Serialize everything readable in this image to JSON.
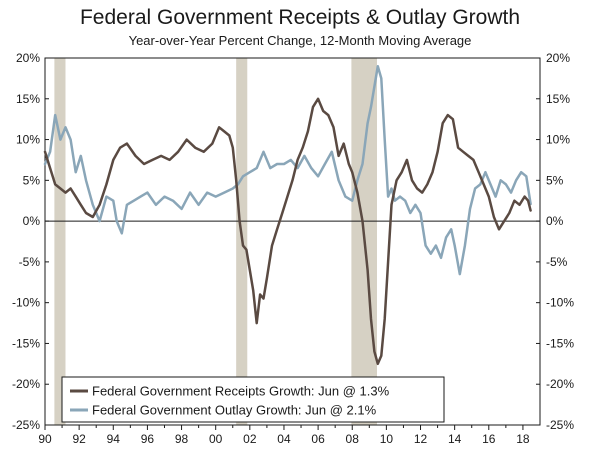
{
  "chart_data": {
    "type": "line",
    "title": "Federal Government Receipts & Outlay Growth",
    "subtitle": "Year-over-Year Percent Change, 12-Month Moving Average",
    "xlabel": "",
    "ylabel": "",
    "xlim": [
      1990.0,
      2019.0
    ],
    "ylim": [
      -25,
      20
    ],
    "y_ticks": [
      20,
      15,
      10,
      5,
      0,
      -5,
      -10,
      -15,
      -20,
      -25
    ],
    "y_tick_labels_left": [
      "20%",
      "15%",
      "10%",
      "5%",
      "0%",
      "-5%",
      "-10%",
      "-15%",
      "-20%",
      "-25%"
    ],
    "y_tick_labels_right": [
      "20%",
      "15%",
      "10%",
      "5%",
      "0%",
      "-5%",
      "-10%",
      "-15%",
      "-20%",
      "-25%"
    ],
    "x_ticks": [
      1990,
      1992,
      1994,
      1996,
      1998,
      2000,
      2002,
      2004,
      2006,
      2008,
      2010,
      2012,
      2014,
      2016,
      2018
    ],
    "x_tick_labels": [
      "90",
      "92",
      "94",
      "96",
      "98",
      "00",
      "02",
      "04",
      "06",
      "08",
      "10",
      "12",
      "14",
      "16",
      "18"
    ],
    "recessions": [
      {
        "start": 1990.55,
        "end": 1991.2
      },
      {
        "start": 2001.2,
        "end": 2001.85
      },
      {
        "start": 2007.95,
        "end": 2009.45
      }
    ],
    "series": [
      {
        "name": "Federal Government Receipts Growth: Jun @ 1.3%",
        "color": "#5a4a42",
        "x": [
          1990.0,
          1990.3,
          1990.6,
          1990.9,
          1991.2,
          1991.5,
          1991.8,
          1992.1,
          1992.4,
          1992.8,
          1993.2,
          1993.6,
          1994.0,
          1994.4,
          1994.8,
          1995.3,
          1995.8,
          1996.3,
          1996.8,
          1997.3,
          1997.8,
          1998.3,
          1998.8,
          1999.3,
          1999.8,
          2000.2,
          2000.5,
          2000.8,
          2001.0,
          2001.2,
          2001.4,
          2001.6,
          2001.8,
          2002.0,
          2002.2,
          2002.4,
          2002.6,
          2002.8,
          2003.0,
          2003.3,
          2003.6,
          2003.9,
          2004.2,
          2004.5,
          2004.8,
          2005.1,
          2005.4,
          2005.7,
          2006.0,
          2006.3,
          2006.6,
          2006.9,
          2007.2,
          2007.5,
          2007.8,
          2008.0,
          2008.3,
          2008.6,
          2008.9,
          2009.1,
          2009.3,
          2009.5,
          2009.7,
          2009.9,
          2010.1,
          2010.3,
          2010.6,
          2010.9,
          2011.2,
          2011.5,
          2011.8,
          2012.1,
          2012.4,
          2012.7,
          2013.0,
          2013.3,
          2013.6,
          2013.9,
          2014.2,
          2014.5,
          2014.8,
          2015.1,
          2015.4,
          2015.7,
          2016.0,
          2016.3,
          2016.6,
          2016.9,
          2017.2,
          2017.5,
          2017.8,
          2018.1,
          2018.3,
          2018.45
        ],
        "values": [
          8.5,
          6.5,
          4.5,
          4.0,
          3.5,
          4.0,
          3.0,
          2.0,
          1.0,
          0.5,
          2.0,
          4.5,
          7.5,
          9.0,
          9.5,
          8.0,
          7.0,
          7.5,
          8.0,
          7.5,
          8.5,
          10.0,
          9.0,
          8.5,
          9.5,
          11.5,
          11.0,
          10.5,
          9.0,
          5.0,
          0.0,
          -3.0,
          -3.5,
          -6.0,
          -8.5,
          -12.5,
          -9.0,
          -9.5,
          -7.0,
          -3.0,
          -1.0,
          1.0,
          3.0,
          5.0,
          7.5,
          9.0,
          11.0,
          14.0,
          15.0,
          13.5,
          13.0,
          11.5,
          8.0,
          9.5,
          7.0,
          6.0,
          3.5,
          0.0,
          -6.0,
          -12.0,
          -16.0,
          -17.5,
          -16.5,
          -12.0,
          -5.0,
          2.0,
          5.0,
          6.0,
          7.5,
          5.0,
          4.0,
          3.5,
          4.5,
          6.0,
          8.5,
          12.0,
          13.0,
          12.5,
          9.0,
          8.5,
          8.0,
          7.5,
          6.0,
          4.5,
          3.0,
          0.5,
          -1.0,
          0.0,
          1.0,
          2.5,
          2.0,
          3.0,
          2.5,
          1.3
        ]
      },
      {
        "name": "Federal Government Outlay Growth: Jun @ 2.1%",
        "color": "#8aa6b8",
        "x": [
          1990.0,
          1990.3,
          1990.6,
          1990.9,
          1991.2,
          1991.5,
          1991.8,
          1992.1,
          1992.4,
          1992.8,
          1993.2,
          1993.6,
          1994.0,
          1994.2,
          1994.5,
          1994.8,
          1995.2,
          1995.6,
          1996.0,
          1996.5,
          1997.0,
          1997.5,
          1998.0,
          1998.5,
          1999.0,
          1999.5,
          2000.0,
          2000.5,
          2001.0,
          2001.3,
          2001.6,
          2002.0,
          2002.4,
          2002.8,
          2003.2,
          2003.6,
          2004.0,
          2004.4,
          2004.8,
          2005.2,
          2005.6,
          2006.0,
          2006.4,
          2006.8,
          2007.2,
          2007.6,
          2008.0,
          2008.3,
          2008.6,
          2008.9,
          2009.1,
          2009.3,
          2009.5,
          2009.7,
          2009.9,
          2010.1,
          2010.3,
          2010.5,
          2010.8,
          2011.1,
          2011.4,
          2011.7,
          2012.0,
          2012.3,
          2012.6,
          2012.9,
          2013.2,
          2013.5,
          2013.8,
          2014.0,
          2014.3,
          2014.6,
          2014.9,
          2015.2,
          2015.5,
          2015.8,
          2016.1,
          2016.4,
          2016.7,
          2017.0,
          2017.3,
          2017.6,
          2017.9,
          2018.2,
          2018.45
        ],
        "values": [
          7.0,
          8.5,
          13.0,
          10.0,
          11.5,
          10.0,
          6.0,
          8.0,
          5.0,
          2.0,
          0.0,
          3.0,
          2.5,
          0.0,
          -1.5,
          2.0,
          2.5,
          3.0,
          3.5,
          2.0,
          3.0,
          2.5,
          1.5,
          3.5,
          2.0,
          3.5,
          3.0,
          3.5,
          4.0,
          4.5,
          5.5,
          6.0,
          6.5,
          8.5,
          6.5,
          7.0,
          7.0,
          7.5,
          6.5,
          8.0,
          6.5,
          5.5,
          7.0,
          8.5,
          5.0,
          3.0,
          2.5,
          5.0,
          7.0,
          12.0,
          14.0,
          16.5,
          19.0,
          17.5,
          10.0,
          3.0,
          4.0,
          2.5,
          3.0,
          2.5,
          1.0,
          2.0,
          1.0,
          -3.0,
          -4.0,
          -3.0,
          -4.5,
          -2.0,
          -1.0,
          -3.0,
          -6.5,
          -3.0,
          1.5,
          4.0,
          4.5,
          6.0,
          4.5,
          3.0,
          5.0,
          4.5,
          3.5,
          5.0,
          6.0,
          5.5,
          2.1
        ]
      }
    ],
    "legend_position": "bottom-left"
  }
}
